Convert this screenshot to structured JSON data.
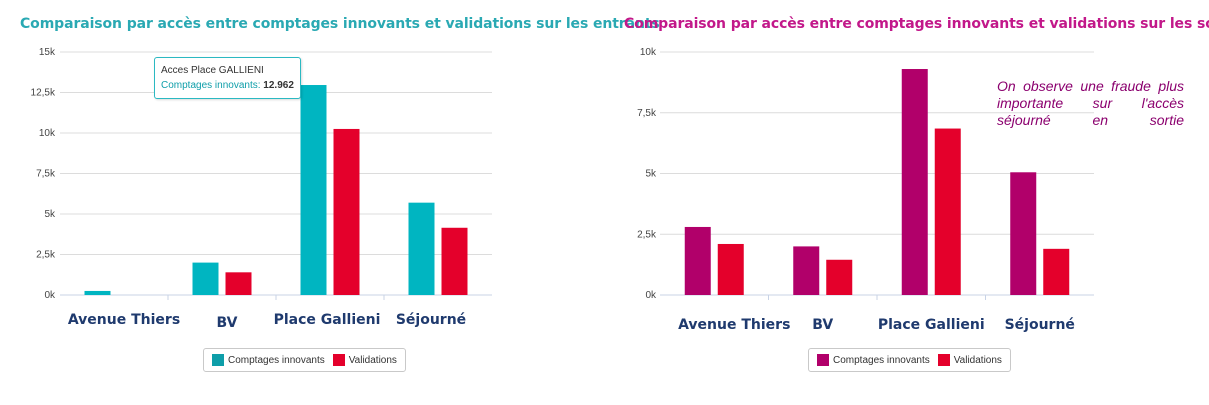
{
  "colors": {
    "teal": "#00b5c1",
    "teal_dark": "#0e9ea9",
    "red": "#e4002b",
    "magenta": "#b1006a",
    "title_teal": "#2aa9b3",
    "title_magenta": "#c2188a"
  },
  "chart_data": [
    {
      "type": "bar",
      "title": "Comparaison par accès entre comptages innovants et validations sur les entrants",
      "categories": [
        "Avenue Thiers",
        "BV",
        "Place Gallieni",
        "Séjourné"
      ],
      "ylim": [
        0,
        15000
      ],
      "ytick_labels": [
        "0k",
        "2,5k",
        "5k",
        "7,5k",
        "10k",
        "12,5k",
        "15k"
      ],
      "series": [
        {
          "name": "Comptages innovants",
          "color": "#00b5c1",
          "values": [
            250,
            2000,
            12962,
            5700
          ]
        },
        {
          "name": "Validations",
          "color": "#e4002b",
          "values": [
            0,
            1400,
            10250,
            4150
          ]
        }
      ],
      "tooltip": {
        "title": "Acces Place GALLIENI",
        "label": "Comptages innovants:",
        "value": "12.962"
      },
      "legend": "bottom-center"
    },
    {
      "type": "bar",
      "title": "Comparaison par accès entre comptages innovants et validations sur les sortants",
      "categories": [
        "Avenue Thiers",
        "BV",
        "Place Gallieni",
        "Séjourné"
      ],
      "ylim": [
        0,
        10000
      ],
      "ytick_labels": [
        "0k",
        "2,5k",
        "5k",
        "7,5k",
        "10k"
      ],
      "series": [
        {
          "name": "Comptages innovants",
          "color": "#b1006a",
          "values": [
            2800,
            2000,
            9300,
            5050
          ]
        },
        {
          "name": "Validations",
          "color": "#e4002b",
          "values": [
            2100,
            1450,
            6850,
            1900
          ]
        }
      ],
      "annotation": "On observe une fraude plus importante sur l'accès séjourné en sortie",
      "legend": "bottom-center"
    }
  ]
}
